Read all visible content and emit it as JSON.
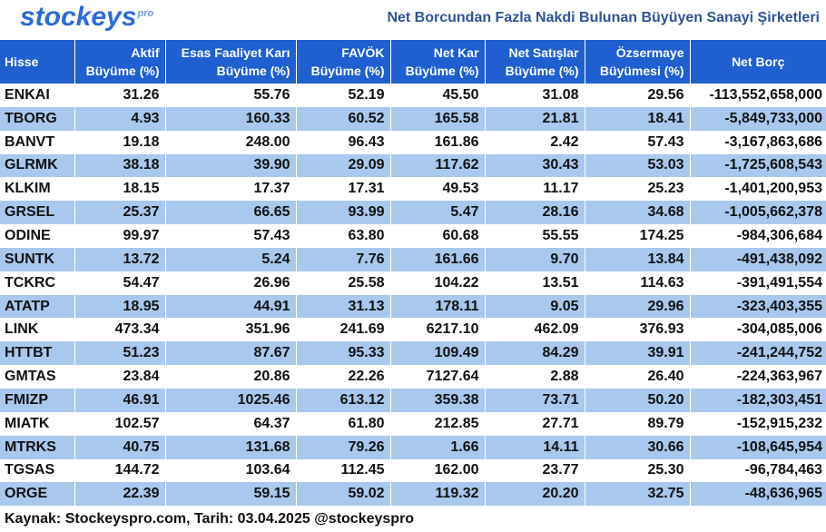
{
  "header": {
    "logo_text": "stockeys",
    "logo_suffix": "pro",
    "title": "Net Borcundan Fazla Nakdi Bulunan Büyüyen Sanayi Şirketleri"
  },
  "table": {
    "columns": [
      {
        "line1": "Hisse",
        "line2": ""
      },
      {
        "line1": "Aktif",
        "line2": "Büyüme (%)"
      },
      {
        "line1": "Esas Faaliyet Karı",
        "line2": "Büyüme (%)"
      },
      {
        "line1": "FAVÖK",
        "line2": "Büyüme (%)"
      },
      {
        "line1": "Net Kar",
        "line2": "Büyüme (%)"
      },
      {
        "line1": "Net Satışlar",
        "line2": "Büyüme (%)"
      },
      {
        "line1": "Özsermaye",
        "line2": "Büyümesi (%)"
      },
      {
        "line1": "Net Borç",
        "line2": ""
      }
    ],
    "rows": [
      [
        "ENKAI",
        "31.26",
        "55.76",
        "52.19",
        "45.50",
        "31.08",
        "29.56",
        "-113,552,658,000"
      ],
      [
        "TBORG",
        "4.93",
        "160.33",
        "60.52",
        "165.58",
        "21.81",
        "18.41",
        "-5,849,733,000"
      ],
      [
        "BANVT",
        "19.18",
        "248.00",
        "96.43",
        "161.86",
        "2.42",
        "57.43",
        "-3,167,863,686"
      ],
      [
        "GLRMK",
        "38.18",
        "39.90",
        "29.09",
        "117.62",
        "30.43",
        "53.03",
        "-1,725,608,543"
      ],
      [
        "KLKIM",
        "18.15",
        "17.37",
        "17.31",
        "49.53",
        "11.17",
        "25.23",
        "-1,401,200,953"
      ],
      [
        "GRSEL",
        "25.37",
        "66.65",
        "93.99",
        "5.47",
        "28.16",
        "34.68",
        "-1,005,662,378"
      ],
      [
        "ODINE",
        "99.97",
        "57.43",
        "63.80",
        "60.68",
        "55.55",
        "174.25",
        "-984,306,684"
      ],
      [
        "SUNTK",
        "13.72",
        "5.24",
        "7.76",
        "161.66",
        "9.70",
        "13.84",
        "-491,438,092"
      ],
      [
        "TCKRC",
        "54.47",
        "26.96",
        "25.58",
        "104.22",
        "13.51",
        "114.63",
        "-391,491,554"
      ],
      [
        "ATATP",
        "18.95",
        "44.91",
        "31.13",
        "178.11",
        "9.05",
        "29.96",
        "-323,403,355"
      ],
      [
        "LINK",
        "473.34",
        "351.96",
        "241.69",
        "6217.10",
        "462.09",
        "376.93",
        "-304,085,006"
      ],
      [
        "HTTBT",
        "51.23",
        "87.67",
        "95.33",
        "109.49",
        "84.29",
        "39.91",
        "-241,244,752"
      ],
      [
        "GMTAS",
        "23.84",
        "20.86",
        "22.26",
        "7127.64",
        "2.88",
        "26.40",
        "-224,363,967"
      ],
      [
        "FMIZP",
        "46.91",
        "1025.46",
        "613.12",
        "359.38",
        "73.71",
        "50.20",
        "-182,303,451"
      ],
      [
        "MIATK",
        "102.57",
        "64.37",
        "61.80",
        "212.85",
        "27.71",
        "89.79",
        "-152,915,232"
      ],
      [
        "MTRKS",
        "40.75",
        "131.68",
        "79.26",
        "1.66",
        "14.11",
        "30.66",
        "-108,645,954"
      ],
      [
        "TGSAS",
        "144.72",
        "103.64",
        "112.45",
        "162.00",
        "23.77",
        "25.30",
        "-96,784,463"
      ],
      [
        "ORGE",
        "22.39",
        "59.15",
        "59.02",
        "119.32",
        "20.20",
        "32.75",
        "-48,636,965"
      ]
    ]
  },
  "footer": {
    "text": "Kaynak: Stockeyspro.com, Tarih: 03.04.2025 @stockeyspro"
  },
  "colors": {
    "header_bg": "#1f5fcf",
    "row_stripe": "#a9c8ee",
    "title_color": "#2f5496",
    "logo_color": "#2e6bd3"
  }
}
